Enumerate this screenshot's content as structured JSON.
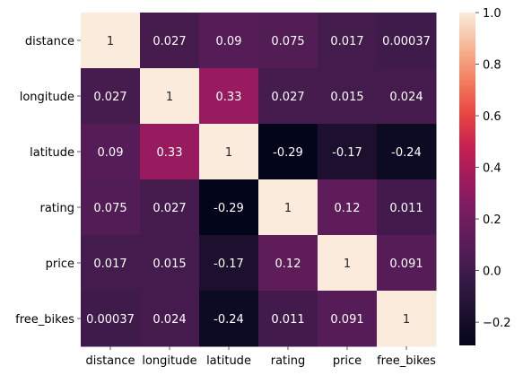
{
  "chart_data": {
    "type": "heatmap",
    "rows": [
      "distance",
      "longitude",
      "latitude",
      "rating",
      "price",
      "free_bikes"
    ],
    "cols": [
      "distance",
      "longitude",
      "latitude",
      "rating",
      "price",
      "free_bikes"
    ],
    "values": [
      [
        1,
        0.027,
        0.09,
        0.075,
        0.017,
        0.00037
      ],
      [
        0.027,
        1,
        0.33,
        0.027,
        0.015,
        0.024
      ],
      [
        0.09,
        0.33,
        1,
        -0.29,
        -0.17,
        -0.24
      ],
      [
        0.075,
        0.027,
        -0.29,
        1,
        0.12,
        0.011
      ],
      [
        0.017,
        0.015,
        -0.17,
        0.12,
        1,
        0.091
      ],
      [
        0.00037,
        0.024,
        -0.24,
        0.011,
        0.091,
        1
      ]
    ],
    "labels": [
      [
        "1",
        "0.027",
        "0.09",
        "0.075",
        "0.017",
        "0.00037"
      ],
      [
        "0.027",
        "1",
        "0.33",
        "0.027",
        "0.015",
        "0.024"
      ],
      [
        "0.09",
        "0.33",
        "1",
        "-0.29",
        "-0.17",
        "-0.24"
      ],
      [
        "0.075",
        "0.027",
        "-0.29",
        "1",
        "0.12",
        "0.011"
      ],
      [
        "0.017",
        "0.015",
        "-0.17",
        "0.12",
        "1",
        "0.091"
      ],
      [
        "0.00037",
        "0.024",
        "-0.24",
        "0.011",
        "0.091",
        "1"
      ]
    ],
    "colorbar": {
      "vmin": -0.29,
      "vmax": 1.0,
      "ticks": [
        -0.2,
        0.0,
        0.2,
        0.4,
        0.6,
        0.8,
        1.0
      ],
      "tick_labels": [
        "−0.2",
        "0.0",
        "0.2",
        "0.4",
        "0.6",
        "0.8",
        "1.0"
      ],
      "colormap": "rocket"
    },
    "title": "",
    "xlabel": "",
    "ylabel": "",
    "grid": false
  }
}
